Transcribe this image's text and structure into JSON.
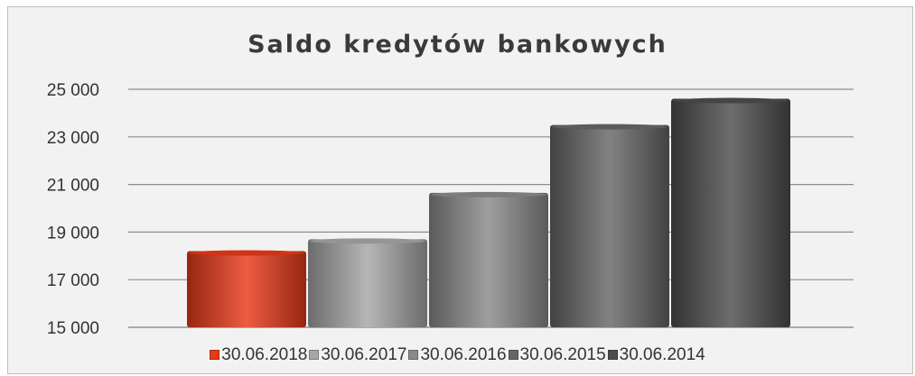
{
  "chart_data": {
    "type": "bar",
    "title": "Saldo kredytów bankowych",
    "categories": [
      "30.06.2018",
      "30.06.2017",
      "30.06.2016",
      "30.06.2015",
      "30.06.2014"
    ],
    "values": [
      18200,
      18700,
      20650,
      23500,
      24600
    ],
    "colors": [
      "#e8391a",
      "#a6a6a6",
      "#8a8a8a",
      "#666666",
      "#4d4d4d"
    ],
    "ylim": [
      15000,
      25000
    ],
    "yticks": [
      15000,
      17000,
      19000,
      21000,
      23000,
      25000
    ],
    "ytick_labels": [
      "15 000",
      "17 000",
      "19 000",
      "21 000",
      "23 000",
      "25 000"
    ],
    "grid": true,
    "legend_position": "bottom",
    "xlabel": "",
    "ylabel": ""
  }
}
